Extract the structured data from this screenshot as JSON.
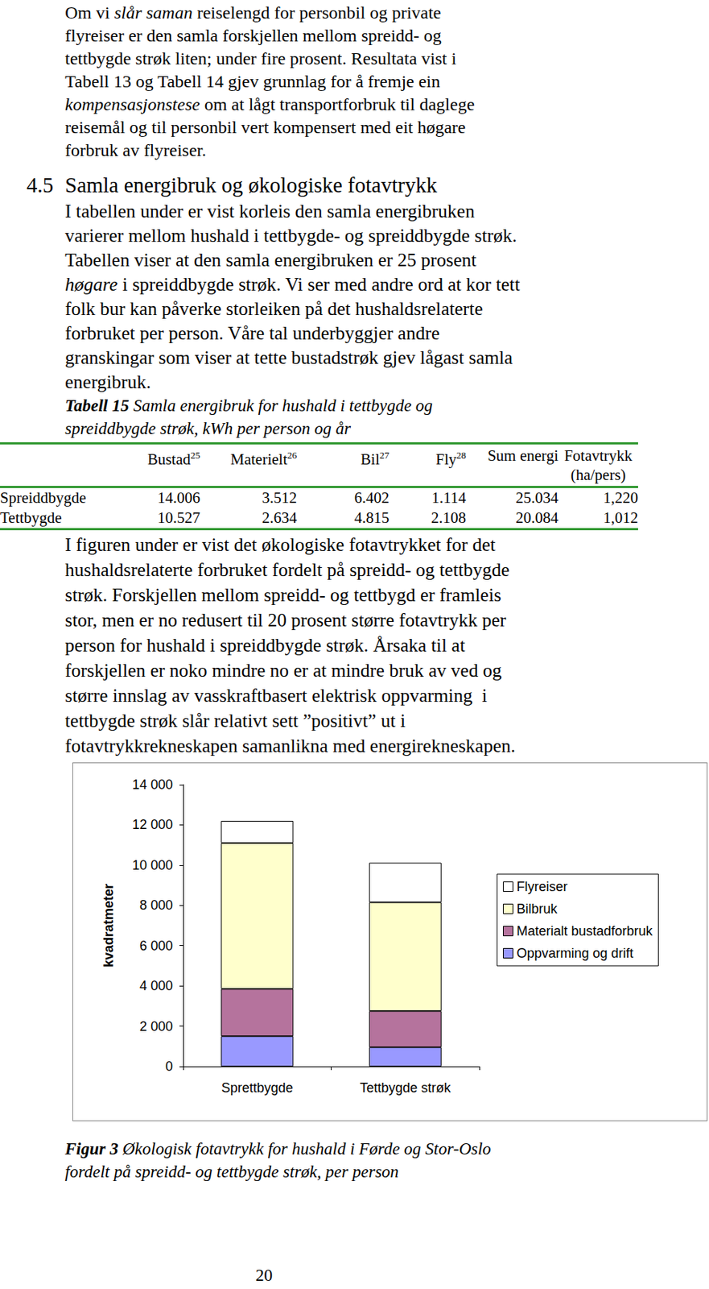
{
  "paragraph_1": [
    [
      {
        "t": "Om vi "
      },
      {
        "t": "slår saman",
        "i": true
      },
      {
        "t": " reiselengd for personbil og private"
      }
    ],
    "flyreiser er den samla forskjellen mellom spreidd- og",
    "tettbygde strøk liten; under fire prosent. Resultata vist i",
    "Tabell 13 og Tabell 14 gjev grunnlag for å fremje ein",
    [
      {
        "t": "kompensasjonstese",
        "i": true
      },
      {
        "t": " om at lågt transportforbruk til daglege"
      }
    ],
    "reisemål og til personbil vert kompensert med eit høgare",
    "forbruk av flyreiser."
  ],
  "heading": {
    "number": "4.5",
    "title": "Samla energibruk og økologiske fotavtrykk"
  },
  "paragraph_2": [
    "I tabellen under er vist korleis den samla energibruken",
    "varierer mellom hushald i tettbygde- og spreiddbygde strøk.",
    "Tabellen viser at den samla energibruken er 25 prosent",
    [
      {
        "t": "høgare",
        "i": true
      },
      {
        "t": " i spreiddbygde strøk. Vi ser med andre ord at kor tett"
      }
    ],
    "folk bur kan påverke storleiken på det hushaldsrelaterte",
    "forbruket per person. Våre tal underbyggjer andre",
    "granskingar som viser at tette bustadstrøk gjev lågast samla",
    "energibruk."
  ],
  "table": {
    "caption": {
      "label": "Tabell 15",
      "lines": [
        "Samla energibruk for hushald i tettbygde og",
        "spreiddbygde strøk, kWh per person og år"
      ]
    },
    "header": [
      {
        "lines": [
          ""
        ]
      },
      {
        "lines": [
          "Bustad"
        ],
        "sup": "25"
      },
      {
        "lines": [
          "Materielt"
        ],
        "sup": "26"
      },
      {
        "lines": [
          "Bil"
        ],
        "sup": "27"
      },
      {
        "lines": [
          "Fly"
        ],
        "sup": "28"
      },
      {
        "lines": [
          "Sum energi"
        ]
      },
      {
        "lines": [
          "Fotavtrykk",
          "(ha/pers)"
        ]
      }
    ],
    "rows": [
      [
        "Spreiddbygde",
        "14.006",
        "3.512",
        "6.402",
        "1.114",
        "25.034",
        "1,220"
      ],
      [
        "Tettbygde",
        "10.527",
        "2.634",
        "4.815",
        "2.108",
        "20.084",
        "1,012"
      ]
    ]
  },
  "paragraph_3": [
    "I figuren under er vist det økologiske fotavtrykket for det",
    "hushaldsrelaterte forbruket fordelt på spreidd- og tettbygde",
    "strøk. Forskjellen mellom spreidd- og tettbygd er framleis",
    "stor, men er no redusert til 20 prosent større fotavtrykk per",
    "person for hushald i spreiddbygde strøk. Årsaka til at",
    "forskjellen er noko mindre no er at mindre bruk av ved og",
    "større innslag av vasskraftbasert elektrisk oppvarming  i",
    "tettbygde strøk slår relativt sett ”positivt” ut i",
    "fotavtrykkrekneskapen samanlikna med energirekneskapen."
  ],
  "chart_data": {
    "type": "bar",
    "stacked": true,
    "y_label": "kvadratmeter",
    "categories": [
      "Sprettbygde",
      "Tettbygde strøk"
    ],
    "series": [
      {
        "name": "Oppvarming og drift",
        "color": "#9999ff",
        "values": [
          1500,
          950
        ]
      },
      {
        "name": "Materialt bustadforbruk",
        "color": "#b5739d",
        "values": [
          2350,
          1800
        ]
      },
      {
        "name": "Bilbruk",
        "color": "#ffffcc",
        "values": [
          7250,
          5400
        ]
      },
      {
        "name": "Flyreiser",
        "color": "#ffffff",
        "values": [
          1100,
          1970
        ]
      }
    ],
    "ylim": [
      0,
      14000
    ],
    "yticks": [
      0,
      {
        "value": 2000,
        "label": "2 000"
      },
      {
        "value": 4000,
        "label": "4 000"
      },
      {
        "value": 6000,
        "label": "6 000"
      },
      {
        "value": 8000,
        "label": "8 000"
      },
      {
        "value": 10000,
        "label": "10 000"
      },
      {
        "value": 12000,
        "label": "12 000"
      },
      {
        "value": 14000,
        "label": "14 000"
      }
    ],
    "grid": false,
    "legend": "right"
  },
  "figure_caption": {
    "label": "Figur 3",
    "lines": [
      "Økologisk fotavtrykk for hushald i Førde og Stor-Oslo",
      "fordelt på spreidd- og tettbygde strøk, per person"
    ]
  },
  "page_number": "20"
}
